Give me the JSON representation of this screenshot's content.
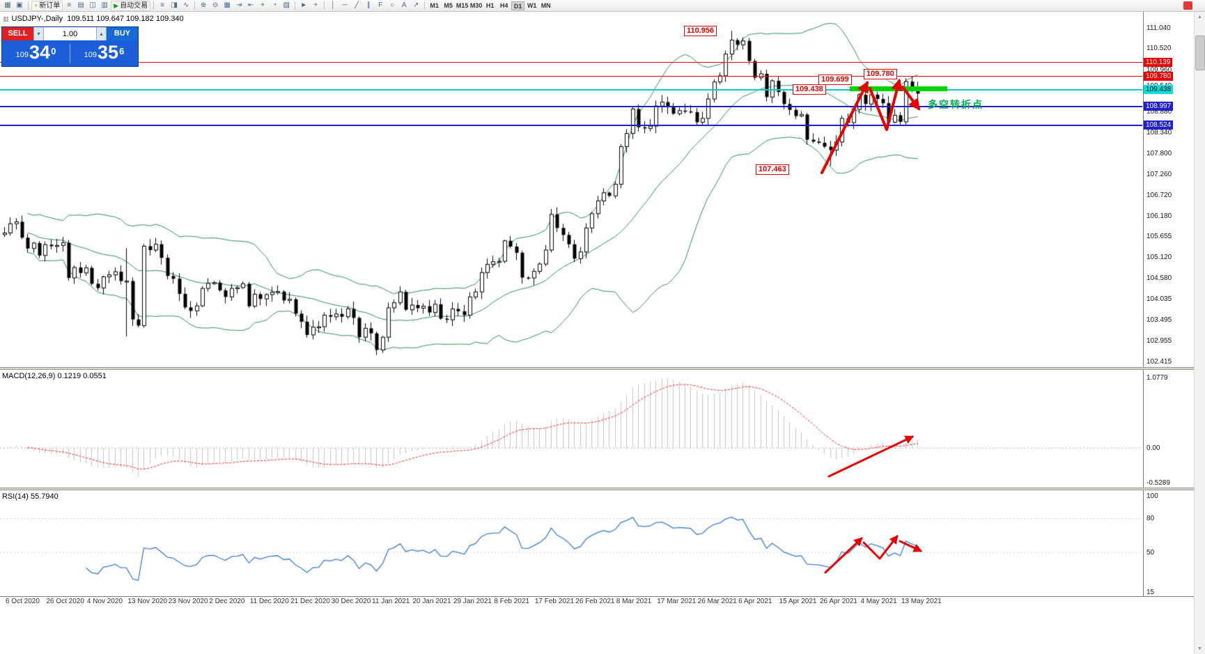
{
  "toolbar": {
    "items": [
      {
        "kind": "icon",
        "name": "new-chart-icon",
        "glyph": "▦"
      },
      {
        "kind": "icon",
        "name": "profiles-icon",
        "glyph": "▣"
      },
      {
        "kind": "sep"
      },
      {
        "kind": "button",
        "name": "new-order-button",
        "glyph": "+",
        "glyph_color": "#c59a00",
        "label": "新订单"
      },
      {
        "kind": "icon",
        "name": "market-watch-icon",
        "glyph": "≡"
      },
      {
        "kind": "icon",
        "name": "data-window-icon",
        "glyph": "▤"
      },
      {
        "kind": "icon",
        "name": "navigator-icon",
        "glyph": "◫"
      },
      {
        "kind": "icon",
        "name": "terminal-icon",
        "glyph": "▥"
      },
      {
        "kind": "button",
        "name": "autotrading-button",
        "glyph": "▶",
        "glyph_color": "#1a9a1a",
        "label": "自动交易"
      },
      {
        "kind": "sep"
      },
      {
        "kind": "icon",
        "name": "bar-chart-icon",
        "glyph": "≡"
      },
      {
        "kind": "icon",
        "name": "candlestick-chart-icon",
        "glyph": "◨"
      },
      {
        "kind": "icon",
        "name": "line-chart-icon",
        "glyph": "∿"
      },
      {
        "kind": "sep"
      },
      {
        "kind": "icon",
        "name": "zoom-in-icon",
        "glyph": "⊕"
      },
      {
        "kind": "icon",
        "name": "zoom-out-icon",
        "glyph": "⊖"
      },
      {
        "kind": "icon",
        "name": "tile-windows-icon",
        "glyph": "▦"
      },
      {
        "kind": "icon",
        "name": "auto-scroll-icon",
        "glyph": "⇥"
      },
      {
        "kind": "icon",
        "name": "chart-shift-icon",
        "glyph": "⇤"
      },
      {
        "kind": "icon",
        "name": "indicators-icon",
        "glyph": "+",
        "color": "#0a8a0a"
      },
      {
        "kind": "icon",
        "name": "periods-icon",
        "glyph": "◔"
      },
      {
        "kind": "icon",
        "name": "templates-icon",
        "glyph": "▧"
      },
      {
        "kind": "sep"
      },
      {
        "kind": "icon",
        "name": "cursor-icon",
        "glyph": "►"
      },
      {
        "kind": "icon",
        "name": "crosshair-icon",
        "glyph": "+"
      },
      {
        "kind": "sep"
      },
      {
        "kind": "icon",
        "name": "vertical-line-icon",
        "glyph": "│"
      },
      {
        "kind": "icon",
        "name": "horizontal-line-icon",
        "glyph": "─"
      },
      {
        "kind": "icon",
        "name": "trendline-icon",
        "glyph": "╱"
      },
      {
        "kind": "icon",
        "name": "channel-icon",
        "glyph": "∥"
      },
      {
        "kind": "icon",
        "name": "fibonacci-icon",
        "glyph": "F"
      },
      {
        "kind": "icon",
        "name": "shapes-icon",
        "glyph": "○"
      },
      {
        "kind": "icon",
        "name": "text-icon",
        "glyph": "A"
      },
      {
        "kind": "icon",
        "name": "arrows-icon",
        "glyph": "↗"
      },
      {
        "kind": "sep"
      }
    ],
    "timeframes": [
      "M1",
      "M5",
      "M15",
      "M30",
      "H1",
      "H4",
      "D1",
      "W1",
      "MN"
    ],
    "active_timeframe": "D1"
  },
  "symbol_header": {
    "icon_glyph": "▥",
    "symbol": "USDJPY-,Daily",
    "ohlc": "109.511 109.647 109.182 109.340"
  },
  "trade_panel": {
    "sell_label": "SELL",
    "buy_label": "BUY",
    "volume": "1.00",
    "step_down_glyph": "▾",
    "step_up_glyph": "▴",
    "bid": {
      "prefix": "109",
      "big": "34",
      "sup": "0"
    },
    "ask": {
      "prefix": "109",
      "big": "35",
      "sup": "6"
    }
  },
  "price_scale": {
    "ticks": [
      "111.040",
      "110.520",
      "109.960",
      "109.540",
      "108.880",
      "108.340",
      "107.800",
      "107.260",
      "106.720",
      "106.180",
      "105.655",
      "105.120",
      "104.580",
      "104.035",
      "103.495",
      "102.955",
      "102.415"
    ],
    "badges": [
      {
        "value": "110.139",
        "color": "#ee0000",
        "text": "#ffffff"
      },
      {
        "value": "109.780",
        "color": "#ee0000",
        "text": "#ffffff"
      },
      {
        "value": "109.438",
        "color": "#00e0e0",
        "text": "#000000"
      },
      {
        "value": "108.997",
        "color": "#2020cc",
        "text": "#ffffff"
      },
      {
        "value": "108.524",
        "color": "#2020cc",
        "text": "#ffffff"
      }
    ]
  },
  "hlines": [
    {
      "price": 110.139,
      "color": "#ee0000",
      "size": 1
    },
    {
      "price": 109.78,
      "color": "#ee0000",
      "size": 1
    },
    {
      "price": 109.438,
      "color": "#00cccc",
      "size": 2
    },
    {
      "price": 108.997,
      "color": "#2020cc",
      "size": 2
    },
    {
      "price": 108.524,
      "color": "#2020cc",
      "size": 2
    }
  ],
  "annotations": {
    "peak": "110.956",
    "res1": "109.699",
    "res2": "109.780",
    "res3": "109.438",
    "low": "107.463",
    "note": "多空转折点"
  },
  "macd_panel": {
    "header": "MACD(12,26,9) 0.1219 0.0551",
    "scale": [
      "1.0779",
      "0.00",
      "-0.5289"
    ]
  },
  "rsi_panel": {
    "header": "RSI(14) 55.7940",
    "scale": [
      "100",
      "80",
      "50",
      "15"
    ]
  },
  "dates": [
    "6 Oct 2020",
    "26 Oct 2020",
    "4 Nov 2020",
    "13 Nov 2020",
    "23 Nov 2020",
    "2 Dec 2020",
    "11 Dec 2020",
    "21 Dec 2020",
    "30 Dec 2020",
    "11 Jan 2021",
    "20 Jan 2021",
    "29 Jan 2021",
    "8 Feb 2021",
    "17 Feb 2021",
    "26 Feb 2021",
    "8 Mar 2021",
    "17 Mar 2021",
    "26 Mar 2021",
    "6 Apr 2021",
    "15 Apr 2021",
    "26 Apr 2021",
    "4 May 2021",
    "13 May 2021"
  ],
  "scrollbar": {
    "up_glyph": "▲",
    "down_glyph": "▼"
  },
  "chart_data": {
    "type": "candlestick",
    "symbol": "USDJPY",
    "period": "Daily",
    "title": "USDJPY-,Daily",
    "current_ohlc": {
      "open": "109.511",
      "high": "109.647",
      "low": "109.182",
      "close": "109.340"
    },
    "ylim": [
      102.28,
      111.45
    ],
    "x_first_date": "6 Oct 2020",
    "x_last_date": "13 May 2021",
    "closes": [
      105.74,
      105.98,
      106.03,
      105.62,
      105.34,
      105.48,
      105.16,
      105.44,
      105.4,
      105.42,
      105.49,
      104.58,
      104.85,
      104.71,
      104.84,
      104.43,
      104.32,
      104.61,
      104.66,
      104.74,
      104.5,
      104.5,
      103.51,
      103.35,
      105.4,
      105.3,
      105.45,
      105.1,
      104.63,
      104.56,
      104.17,
      103.82,
      103.73,
      103.86,
      104.31,
      104.44,
      104.46,
      104.26,
      104.09,
      104.31,
      104.33,
      104.43,
      103.85,
      104.16,
      104.04,
      104.15,
      104.21,
      104.23,
      104.0,
      104.03,
      103.66,
      103.45,
      103.11,
      103.31,
      103.32,
      103.62,
      103.58,
      103.65,
      103.58,
      103.78,
      103.55,
      103.05,
      103.28,
      103.15,
      102.72,
      103.05,
      103.81,
      103.94,
      104.22,
      103.76,
      103.88,
      103.8,
      103.85,
      103.69,
      103.9,
      103.53,
      103.5,
      103.78,
      103.72,
      103.62,
      104.09,
      104.22,
      104.72,
      104.93,
      105.0,
      105.01,
      105.54,
      105.39,
      105.23,
      104.59,
      104.58,
      104.75,
      104.94,
      105.3,
      106.22,
      105.87,
      105.69,
      105.45,
      105.08,
      105.25,
      105.87,
      106.24,
      106.57,
      106.78,
      106.7,
      107.0,
      107.97,
      108.31,
      108.94,
      108.47,
      108.44,
      108.5,
      109.02,
      109.12,
      108.99,
      108.82,
      108.9,
      108.88,
      108.86,
      108.6,
      108.7,
      109.2,
      109.64,
      109.8,
      110.36,
      110.72,
      110.6,
      110.7,
      110.18,
      109.75,
      109.85,
      109.25,
      109.67,
      109.38,
      109.07,
      108.92,
      108.76,
      108.8,
      108.15,
      108.1,
      108.07,
      107.97,
      107.88,
      108.09,
      108.7,
      108.59,
      108.93,
      109.31,
      109.07,
      109.31,
      109.2,
      109.09,
      108.6,
      108.78,
      108.61,
      109.65,
      109.46,
      109.34
    ],
    "wick_overrides": {
      "21": {
        "h": 105.35,
        "l": 103.07
      },
      "64": {
        "l": 102.59
      },
      "125": {
        "h": 110.96
      },
      "142": {
        "l": 107.47
      },
      "157": {
        "o": 109.511,
        "h": 109.647,
        "l": 109.182
      }
    },
    "indicators": {
      "bollinger": {
        "period": 20,
        "deviation": 2,
        "color": "#2e8b57"
      },
      "macd": {
        "fast": 12,
        "slow": 26,
        "signal": 9,
        "values": "0.1219 0.0551",
        "scale_max": "1.0779",
        "scale_min": "-0.5289"
      },
      "rsi": {
        "period": 14,
        "value": "55.7940",
        "color": "#3c78d8"
      }
    },
    "key_levels": [
      110.139,
      109.78,
      109.438,
      108.997,
      108.524
    ],
    "key_points": {
      "swing_high": "110.956",
      "swing_low": "107.463",
      "resistance_labels": "109.699 109.780",
      "support_label": "109.438"
    }
  }
}
